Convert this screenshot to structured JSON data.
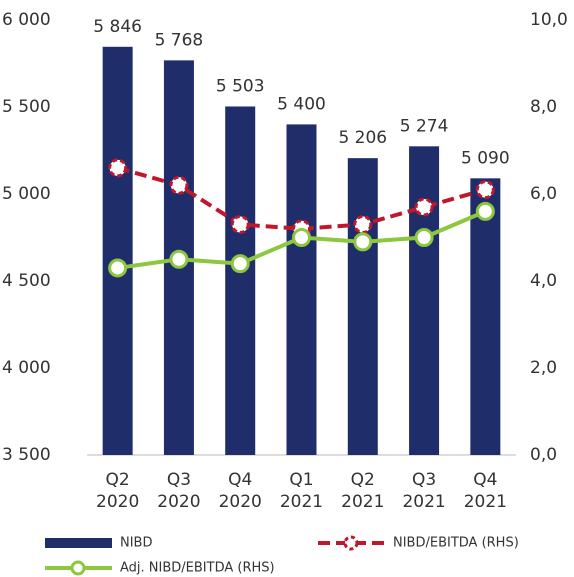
{
  "chart_data": {
    "type": "bar-line",
    "categories": [
      [
        "Q2",
        "2020"
      ],
      [
        "Q3",
        "2020"
      ],
      [
        "Q4",
        "2020"
      ],
      [
        "Q1",
        "2021"
      ],
      [
        "Q2",
        "2021"
      ],
      [
        "Q3",
        "2021"
      ],
      [
        "Q4",
        "2021"
      ]
    ],
    "series": [
      {
        "name": "NIBD",
        "type": "bar",
        "color": "#1f2d6b",
        "values": [
          5846,
          5768,
          5503,
          5400,
          5206,
          5274,
          5090
        ],
        "value_labels": [
          "5 846",
          "5 768",
          "5 503",
          "5 400",
          "5 206",
          "5 274",
          "5 090"
        ]
      },
      {
        "name": "NIBD/EBITDA (RHS)",
        "type": "line",
        "axis": "y2",
        "dashed": true,
        "color": "#c0182a",
        "values": [
          6.6,
          6.2,
          5.3,
          5.2,
          5.3,
          5.7,
          6.1
        ]
      },
      {
        "name": "Adj. NIBD/EBITDA (RHS)",
        "type": "line",
        "axis": "y2",
        "dashed": false,
        "color": "#8dc63f",
        "values": [
          4.3,
          4.5,
          4.4,
          5.0,
          4.9,
          5.0,
          5.6
        ]
      }
    ],
    "ylim": [
      3500,
      6000
    ],
    "yticks": [
      {
        "value": 3500,
        "label": "3 500"
      },
      {
        "value": 4000,
        "label": "4 000"
      },
      {
        "value": 4500,
        "label": "4 500"
      },
      {
        "value": 5000,
        "label": "5 000"
      },
      {
        "value": 5500,
        "label": "5 500"
      },
      {
        "value": 6000,
        "label": "6 000"
      }
    ],
    "y2lim": [
      0,
      10
    ],
    "y2ticks": [
      {
        "value": 0,
        "label": "0,0"
      },
      {
        "value": 2,
        "label": "2,0"
      },
      {
        "value": 4,
        "label": "4,0"
      },
      {
        "value": 6,
        "label": "6,0"
      },
      {
        "value": 8,
        "label": "8,0"
      },
      {
        "value": 10,
        "label": "10,0"
      }
    ],
    "grid": false,
    "legend": "bottom"
  }
}
